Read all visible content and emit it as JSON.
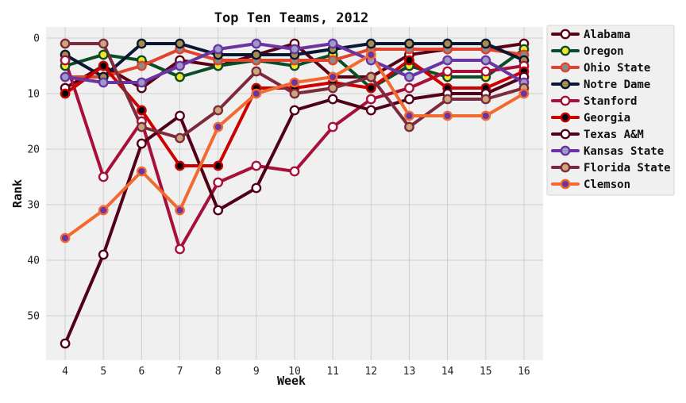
{
  "chart_data": {
    "type": "line",
    "title": "Top Ten Teams, 2012",
    "xlabel": "Week",
    "ylabel": "Rank",
    "x": [
      4,
      5,
      6,
      7,
      8,
      9,
      10,
      11,
      12,
      13,
      14,
      15,
      16
    ],
    "xlim": [
      3.5,
      16.5
    ],
    "ylim": [
      58,
      -2
    ],
    "y_inverted": true,
    "yticks": [
      0,
      10,
      20,
      30,
      40,
      50
    ],
    "grid": true,
    "legend_placement": "outside-right",
    "series": [
      {
        "name": "Alabama",
        "line_color": "#5c0014",
        "marker_fill": "#ffffff",
        "values": [
          9,
          5,
          9,
          4,
          5,
          3,
          1,
          7,
          7,
          3,
          2,
          2,
          1
        ]
      },
      {
        "name": "Oregon",
        "line_color": "#0b4d26",
        "marker_fill": "#f5e52a",
        "values": [
          5,
          3,
          4,
          7,
          5,
          4,
          5,
          3,
          9,
          5,
          7,
          7,
          2
        ]
      },
      {
        "name": "Ohio State",
        "line_color": "#e2432a",
        "marker_fill": "#8a8a8a",
        "values": [
          7,
          7,
          5,
          2,
          4,
          4,
          4,
          4,
          2,
          2,
          2,
          2,
          3
        ]
      },
      {
        "name": "Notre Dame",
        "line_color": "#0a1733",
        "marker_fill": "#a88c4a",
        "values": [
          3,
          7,
          1,
          1,
          3,
          3,
          3,
          2,
          1,
          1,
          1,
          1,
          4
        ]
      },
      {
        "name": "Stanford",
        "line_color": "#a8103a",
        "marker_fill": "#ffffff",
        "values": [
          4,
          25,
          15,
          38,
          26,
          23,
          24,
          16,
          11,
          9,
          6,
          6,
          5
        ]
      },
      {
        "name": "Georgia",
        "line_color": "#cc0000",
        "marker_fill": "#000000",
        "values": [
          10,
          5,
          13,
          23,
          23,
          9,
          9,
          8,
          9,
          4,
          9,
          9,
          6
        ]
      },
      {
        "name": "Texas A&M",
        "line_color": "#500018",
        "marker_fill": "#ffffff",
        "values": [
          55,
          39,
          19,
          14,
          31,
          27,
          13,
          11,
          13,
          11,
          10,
          10,
          7
        ]
      },
      {
        "name": "Kansas State",
        "line_color": "#6a35a2",
        "marker_fill": "#9b9bc8",
        "values": [
          7,
          8,
          8,
          5,
          2,
          1,
          2,
          1,
          4,
          7,
          4,
          4,
          8
        ]
      },
      {
        "name": "Florida State",
        "line_color": "#7d2a3c",
        "marker_fill": "#c9a77a",
        "values": [
          1,
          1,
          16,
          18,
          13,
          6,
          10,
          9,
          7,
          16,
          11,
          11,
          9
        ]
      },
      {
        "name": "Clemson",
        "line_color": "#f26a30",
        "marker_fill": "#6a35a2",
        "values": [
          36,
          31,
          24,
          31,
          16,
          10,
          8,
          7,
          3,
          14,
          14,
          14,
          10
        ]
      }
    ]
  }
}
